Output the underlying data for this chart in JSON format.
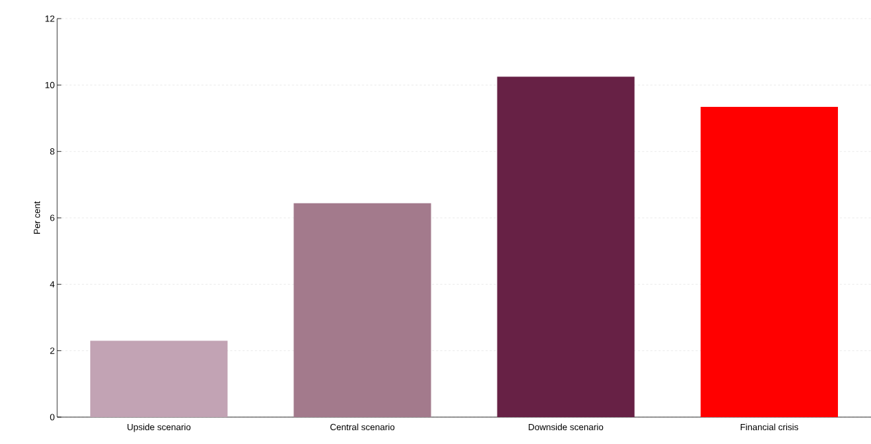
{
  "chart_data": {
    "type": "bar",
    "ylabel": "Per cent",
    "categories": [
      "Upside scenario",
      "Central scenario",
      "Downside scenario",
      "Financial crisis"
    ],
    "values": [
      2.3,
      6.44,
      10.25,
      9.34
    ],
    "colors": [
      "#c2a3b4",
      "#a37a8c",
      "#672145",
      "#ff0000"
    ],
    "ylim": [
      0,
      12
    ],
    "yticks": [
      0,
      2,
      4,
      6,
      8,
      10,
      12
    ],
    "grid": "y"
  }
}
